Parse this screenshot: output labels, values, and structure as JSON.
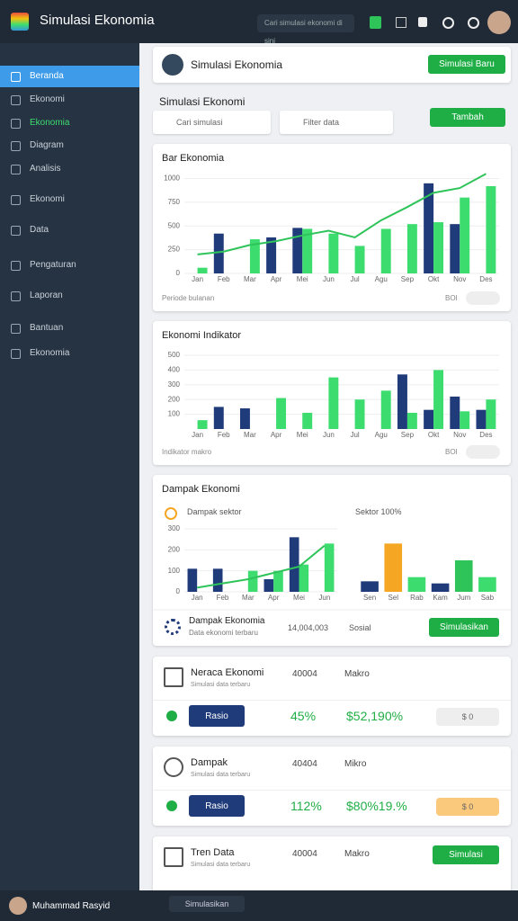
{
  "header": {
    "title": "Simulasi Ekonomia",
    "search": "Cari simulasi ekonomi di sini"
  },
  "sidebar": [
    "Beranda",
    "Ekonomi",
    "Ekonomia",
    "Diagram",
    "Analisis",
    "Ekonomi",
    "Data",
    "Pengaturan",
    "Laporan",
    "Bantuan",
    "Ekonomia"
  ],
  "profile_card": {
    "name": "Simulasi Ekonomia",
    "button": "Simulasi Baru"
  },
  "section": {
    "title": "Simulasi Ekonomi",
    "search_left": "Cari simulasi",
    "search_right": "Filter data",
    "button": "Tambah"
  },
  "charts": [
    {
      "type": "bar",
      "title": "Bar Ekonomia",
      "categories": [
        "Jan",
        "Feb",
        "Mar",
        "Apr",
        "Mei",
        "Jun",
        "Jul",
        "Agu",
        "Sep",
        "Okt",
        "Nov",
        "Des"
      ],
      "ylim": [
        0,
        1100
      ],
      "yticks": [
        0,
        250,
        500,
        750,
        1000
      ],
      "series": [
        {
          "color": "#1f3b7a",
          "values": [
            null,
            420,
            null,
            380,
            480,
            null,
            null,
            null,
            null,
            950,
            520,
            null
          ]
        },
        {
          "color": "#3ddc6f",
          "values": [
            60,
            null,
            360,
            null,
            470,
            420,
            290,
            470,
            520,
            540,
            800,
            920
          ]
        },
        {
          "type": "line",
          "color": "#2fc45a",
          "values": [
            200,
            230,
            300,
            340,
            400,
            450,
            380,
            560,
            700,
            850,
            900,
            1050
          ]
        }
      ],
      "footer": "Periode bulanan",
      "badge": "BOI"
    },
    {
      "type": "bar",
      "title": "Ekonomi Indikator",
      "categories": [
        "Jan",
        "Feb",
        "Mar",
        "Apr",
        "Mei",
        "Jun",
        "Jul",
        "Agu",
        "Sep",
        "Okt",
        "Nov",
        "Des"
      ],
      "ylim": [
        0,
        500
      ],
      "yticks": [
        100,
        200,
        300,
        400,
        500
      ],
      "series": [
        {
          "color": "#1f3b7a",
          "values": [
            null,
            150,
            140,
            null,
            null,
            null,
            null,
            null,
            370,
            130,
            220,
            130
          ]
        },
        {
          "color": "#3ddc6f",
          "values": [
            60,
            null,
            null,
            210,
            110,
            350,
            200,
            260,
            110,
            400,
            120,
            200
          ]
        }
      ],
      "footer": "Indikator makro",
      "badge": "BOI"
    },
    {
      "type": "bar",
      "title": "Dampak Ekonomi",
      "categories": [
        "Jan",
        "Feb",
        "Mar",
        "Apr",
        "Mei",
        "Jun"
      ],
      "ylim": [
        0,
        300
      ],
      "yticks": [
        0,
        100,
        200,
        300
      ],
      "series": [
        {
          "color": "#1f3b7a",
          "values": [
            110,
            110,
            null,
            60,
            260,
            null
          ]
        },
        {
          "color": "#3ddc6f",
          "values": [
            null,
            null,
            100,
            100,
            130,
            230
          ]
        },
        {
          "type": "line",
          "color": "#2fc45a",
          "values": [
            20,
            40,
            60,
            90,
            120,
            220
          ]
        }
      ]
    },
    {
      "type": "bar",
      "categories": [
        "Sen",
        "Sel",
        "Rab",
        "Kam",
        "Jum",
        "Sab"
      ],
      "ylim": [
        0,
        300
      ],
      "series": [
        {
          "colors": [
            "#1f3b7a",
            "#f5a623",
            "#3ddc6f",
            "#1f3b7a",
            "#2fc45a",
            "#3ddc6f"
          ],
          "values": [
            50,
            230,
            70,
            40,
            150,
            70
          ]
        }
      ]
    }
  ],
  "impact": {
    "label_left": "Dampak sektor",
    "label_right": "Sektor 100%",
    "footer_title": "Dampak Ekonomia",
    "footer_sub": "Data ekonomi terbaru",
    "footer_value": "14,004,003",
    "footer_mid": "Sosial",
    "button": "Simulasikan"
  },
  "list": [
    {
      "title": "Neraca Ekonomi",
      "sub": "Simulasi data terbaru",
      "code": "40004",
      "tag": "Makro",
      "button": "Rasio",
      "pct": "45%",
      "value": "$52,190%",
      "pill": "$ 0"
    },
    {
      "title": "Dampak",
      "sub": "Simulasi data terbaru",
      "code": "40404",
      "tag": "Mikro",
      "button": "Rasio",
      "pct": "112%",
      "value": "$80%19.%",
      "pill": "$ 0"
    },
    {
      "title": "Tren Data",
      "sub": "Simulasi data terbaru",
      "code": "40004",
      "tag": "Makro",
      "button": "Simulasi"
    }
  ],
  "footer": {
    "user": "Muhammad Rasyid",
    "button": "Simulasikan"
  }
}
